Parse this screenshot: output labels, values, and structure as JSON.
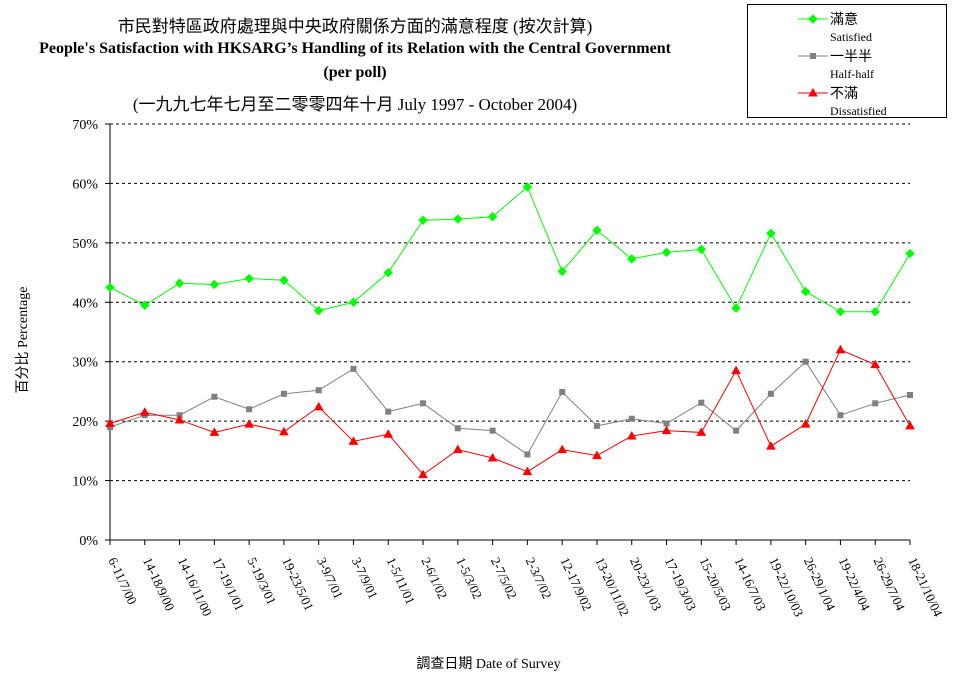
{
  "titles": {
    "line1": "市民對特區政府處理與中央政府關係方面的滿意程度 (按次計算)",
    "line2": "People's Satisfaction with HKSARG’s Handling of its Relation with the Central Government",
    "line3": "(per poll)",
    "line4": "(一九九七年七月至二零零四年十月 July 1997 - October 2004)"
  },
  "chart_data": {
    "type": "line",
    "ylabel": "百分比 Percentage",
    "xlabel": "調查日期 Date of Survey",
    "ylim": [
      0,
      70
    ],
    "yticks": [
      "0%",
      "10%",
      "20%",
      "30%",
      "40%",
      "50%",
      "60%",
      "70%"
    ],
    "grid": "horizontal dashed",
    "legend": "top-right",
    "categories": [
      "6-11/7/00",
      "14-18/9/00",
      "14-16/11/00",
      "17-19/1/01",
      "5-19/3/01",
      "19-23/5/01",
      "3-9/7/01",
      "3-7/9/01",
      "1-5/11/01",
      "2-6/1/02",
      "1-5/3/02",
      "2-7/5/02",
      "2-3/7/02",
      "12-17/9/02",
      "13-20/11/02",
      "20-23/1/03",
      "17-19/3/03",
      "15-20/5/03",
      "14-16/7/03",
      "19-22/10/03",
      "26-29/1/04",
      "19-22/4/04",
      "26-29/7/04",
      "18-21/10/04"
    ],
    "series": [
      {
        "name": "滿意",
        "name_en": "Satisfied",
        "color": "#00ff00",
        "marker": "diamond",
        "values": [
          42.5,
          39.5,
          43.2,
          43.0,
          44.0,
          43.7,
          38.6,
          40.0,
          45.0,
          53.8,
          54.0,
          54.4,
          59.4,
          45.2,
          52.1,
          47.3,
          48.4,
          48.9,
          39.0,
          51.6,
          41.8,
          38.4,
          38.4,
          48.2
        ]
      },
      {
        "name": "一半半",
        "name_en": "Half-half",
        "color": "#808080",
        "marker": "square",
        "values": [
          19.0,
          21.0,
          21.0,
          24.1,
          22.0,
          24.6,
          25.2,
          28.8,
          21.6,
          23.0,
          18.8,
          18.4,
          14.4,
          24.9,
          19.2,
          20.4,
          19.6,
          23.1,
          18.4,
          24.6,
          30.0,
          21.0,
          23.0,
          24.4
        ]
      },
      {
        "name": "不滿",
        "name_en": "Dissatisfied",
        "color": "#ff0000",
        "marker": "triangle",
        "values": [
          19.6,
          21.5,
          20.2,
          18.1,
          19.5,
          18.2,
          22.4,
          16.6,
          17.8,
          11.0,
          15.2,
          13.8,
          11.5,
          15.2,
          14.2,
          17.5,
          18.4,
          18.1,
          28.5,
          15.8,
          19.5,
          32.0,
          29.5,
          19.2
        ]
      }
    ]
  }
}
